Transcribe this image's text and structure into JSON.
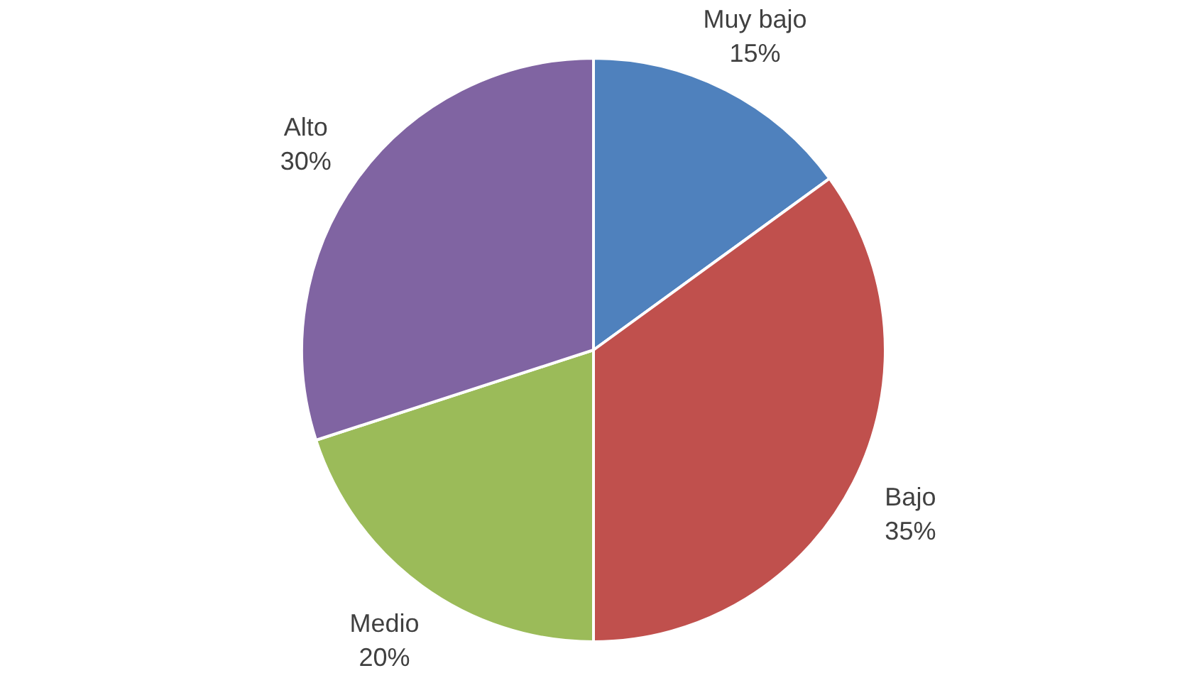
{
  "chart_data": {
    "type": "pie",
    "categories": [
      "Muy bajo",
      "Bajo",
      "Medio",
      "Alto"
    ],
    "values": [
      15,
      35,
      20,
      30
    ],
    "colors": [
      "#4f81bd",
      "#c0504d",
      "#9bbb59",
      "#8064a2"
    ],
    "value_labels": [
      "15%",
      "35%",
      "20%",
      "30%"
    ],
    "legend": false
  }
}
